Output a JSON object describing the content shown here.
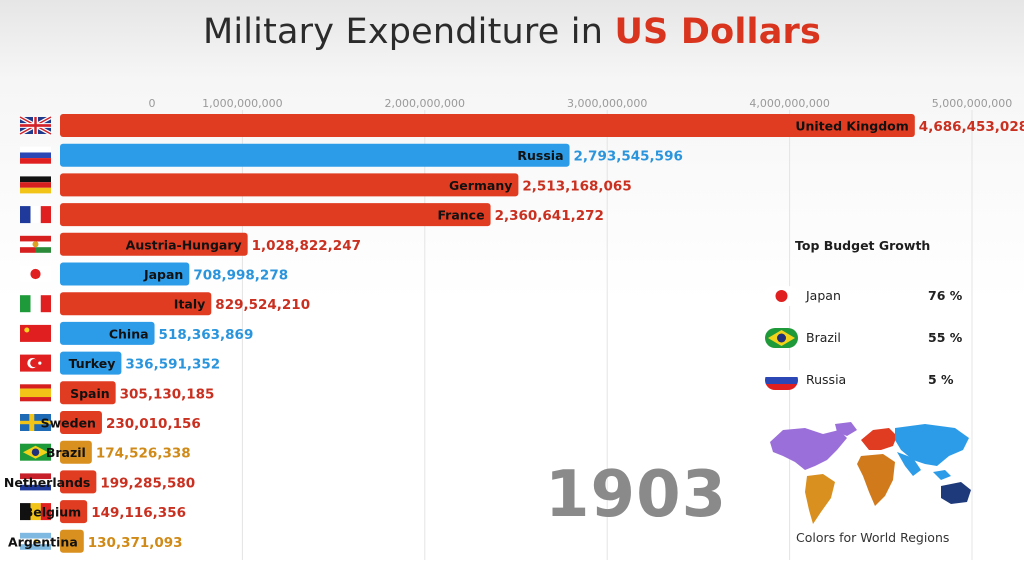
{
  "title": {
    "part1": "Military Expenditure in ",
    "part2": "US Dollars"
  },
  "year": "1903",
  "colors": {
    "accent": "#d9341e",
    "europe": "#e03c22",
    "asia": "#2d9ce8",
    "americas": "#d9901f"
  },
  "chart_data": {
    "type": "bar",
    "orientation": "horizontal",
    "x_ticks": [
      "0",
      "1,000,000,000",
      "2,000,000,000",
      "3,000,000,000",
      "4,000,000,000",
      "5,000,000,000"
    ],
    "xlim": [
      0,
      5000000000
    ],
    "grid": true,
    "bars": [
      {
        "country": "United Kingdom",
        "value": 4686453028,
        "value_label": "4,686,453,028",
        "region": "europe",
        "flag": "uk-flag"
      },
      {
        "country": "Russia",
        "value": 2793545596,
        "value_label": "2,793,545,596",
        "region": "asia",
        "flag": "russia-flag"
      },
      {
        "country": "Germany",
        "value": 2513168065,
        "value_label": "2,513,168,065",
        "region": "europe",
        "flag": "germany-flag"
      },
      {
        "country": "France",
        "value": 2360641272,
        "value_label": "2,360,641,272",
        "region": "europe",
        "flag": "france-flag"
      },
      {
        "country": "Austria-Hungary",
        "value": 1028822247,
        "value_label": "1,028,822,247",
        "region": "europe",
        "flag": "austria-hungary-flag"
      },
      {
        "country": "Japan",
        "value": 708998278,
        "value_label": "708,998,278",
        "region": "asia",
        "flag": "japan-flag"
      },
      {
        "country": "Italy",
        "value": 829524210,
        "value_label": "829,524,210",
        "region": "europe",
        "flag": "italy-flag"
      },
      {
        "country": "China",
        "value": 518363869,
        "value_label": "518,363,869",
        "region": "asia",
        "flag": "china-flag"
      },
      {
        "country": "Turkey",
        "value": 336591352,
        "value_label": "336,591,352",
        "region": "asia",
        "flag": "turkey-flag"
      },
      {
        "country": "Spain",
        "value": 305130185,
        "value_label": "305,130,185",
        "region": "europe",
        "flag": "spain-flag"
      },
      {
        "country": "Sweden",
        "value": 230010156,
        "value_label": "230,010,156",
        "region": "europe",
        "flag": "sweden-flag"
      },
      {
        "country": "Brazil",
        "value": 174526338,
        "value_label": "174,526,338",
        "region": "americas",
        "flag": "brazil-flag"
      },
      {
        "country": "Netherlands",
        "value": 199285580,
        "value_label": "199,285,580",
        "region": "europe",
        "flag": "netherlands-flag"
      },
      {
        "country": "Belgium",
        "value": 149116356,
        "value_label": "149,116,356",
        "region": "europe",
        "flag": "belgium-flag"
      },
      {
        "country": "Argentina",
        "value": 130371093,
        "value_label": "130,371,093",
        "region": "americas",
        "flag": "argentina-flag"
      }
    ]
  },
  "growth_panel": {
    "title": "Top Budget Growth",
    "items": [
      {
        "name": "Japan",
        "pct": "76 %",
        "flag": "japan-flag"
      },
      {
        "name": "Brazil",
        "pct": "55 %",
        "flag": "brazil-flag"
      },
      {
        "name": "Russia",
        "pct": "5 %",
        "flag": "russia-flag"
      }
    ]
  },
  "world_map": {
    "caption": "Colors for World Regions",
    "icon": "world-map-icon"
  }
}
